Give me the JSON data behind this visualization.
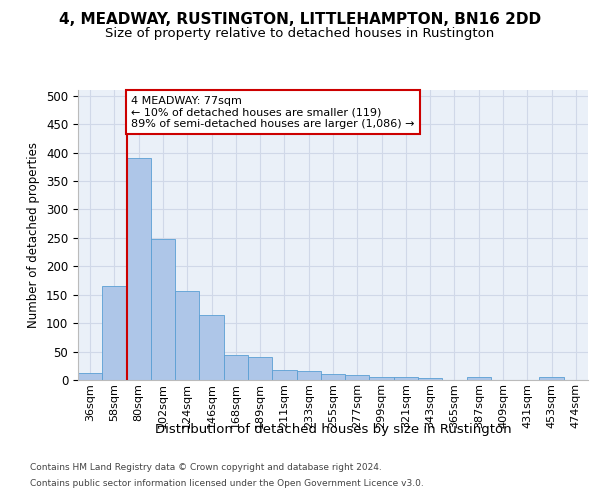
{
  "title": "4, MEADWAY, RUSTINGTON, LITTLEHAMPTON, BN16 2DD",
  "subtitle": "Size of property relative to detached houses in Rustington",
  "xlabel": "Distribution of detached houses by size in Rustington",
  "ylabel": "Number of detached properties",
  "categories": [
    "36sqm",
    "58sqm",
    "80sqm",
    "102sqm",
    "124sqm",
    "146sqm",
    "168sqm",
    "189sqm",
    "211sqm",
    "233sqm",
    "255sqm",
    "277sqm",
    "299sqm",
    "321sqm",
    "343sqm",
    "365sqm",
    "387sqm",
    "409sqm",
    "431sqm",
    "453sqm",
    "474sqm"
  ],
  "values": [
    13,
    165,
    390,
    248,
    157,
    114,
    44,
    40,
    18,
    15,
    10,
    9,
    6,
    5,
    3,
    0,
    5,
    0,
    0,
    5,
    0
  ],
  "bar_color": "#aec6e8",
  "bar_edge_color": "#5a9fd4",
  "grid_color": "#d0d8e8",
  "plot_bg_color": "#eaf0f8",
  "vline_color": "#cc0000",
  "annotation_box_edgecolor": "#cc0000",
  "annotation_line1": "4 MEADWAY: 77sqm",
  "annotation_line2": "← 10% of detached houses are smaller (119)",
  "annotation_line3": "89% of semi-detached houses are larger (1,086) →",
  "vline_bar_index": 2,
  "ylim": [
    0,
    510
  ],
  "yticks": [
    0,
    50,
    100,
    150,
    200,
    250,
    300,
    350,
    400,
    450,
    500
  ],
  "footer_line1": "Contains HM Land Registry data © Crown copyright and database right 2024.",
  "footer_line2": "Contains public sector information licensed under the Open Government Licence v3.0."
}
